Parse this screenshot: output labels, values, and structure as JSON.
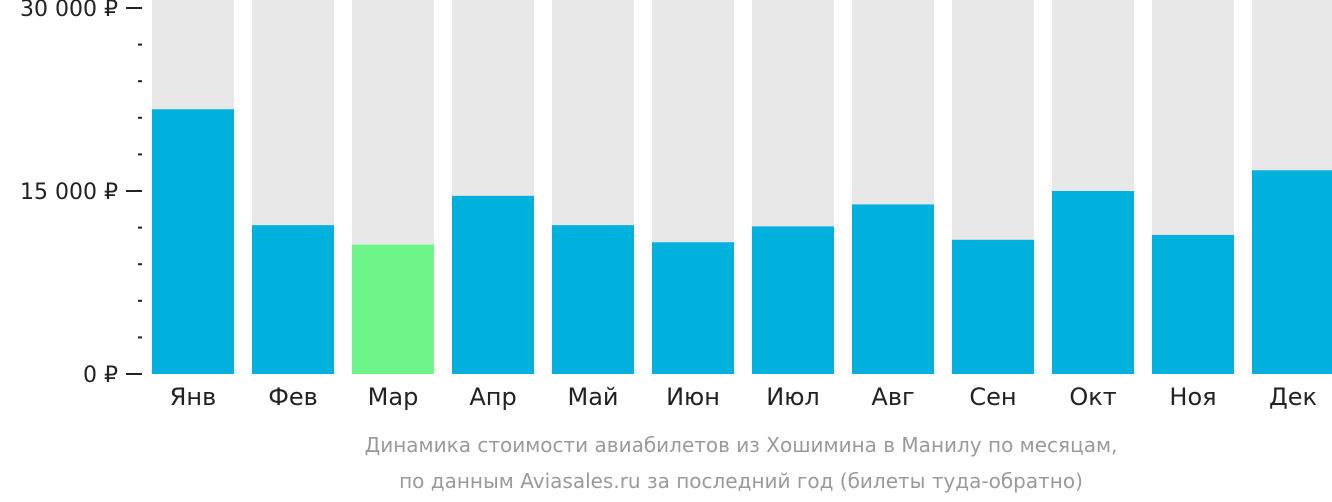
{
  "chart_data": {
    "type": "bar",
    "categories": [
      "Янв",
      "Фев",
      "Мар",
      "Апр",
      "Май",
      "Июн",
      "Июл",
      "Авг",
      "Сен",
      "Окт",
      "Ноя",
      "Дек"
    ],
    "values": [
      21700,
      12200,
      10600,
      14600,
      12200,
      10800,
      12100,
      13900,
      11000,
      15000,
      11400,
      16700
    ],
    "ylim": [
      0,
      30000
    ],
    "yticks": [
      {
        "value": 0,
        "label": "0 ₽"
      },
      {
        "value": 15000,
        "label": "15 000 ₽"
      },
      {
        "value": 30000,
        "label": "30 000 ₽"
      }
    ],
    "minor_tick_step": 3000,
    "highlight_index": 2,
    "grid": false,
    "colors": {
      "bar": "#00b0dd",
      "highlight": "#6ef58a",
      "track": "#e8e8e8",
      "axis": "#222222"
    },
    "caption": [
      "Динамика стоимости авиабилетов из Хошимина в Манилу по месяцам,",
      "по данным Aviasales.ru за последний год (билеты туда-обратно)"
    ]
  }
}
